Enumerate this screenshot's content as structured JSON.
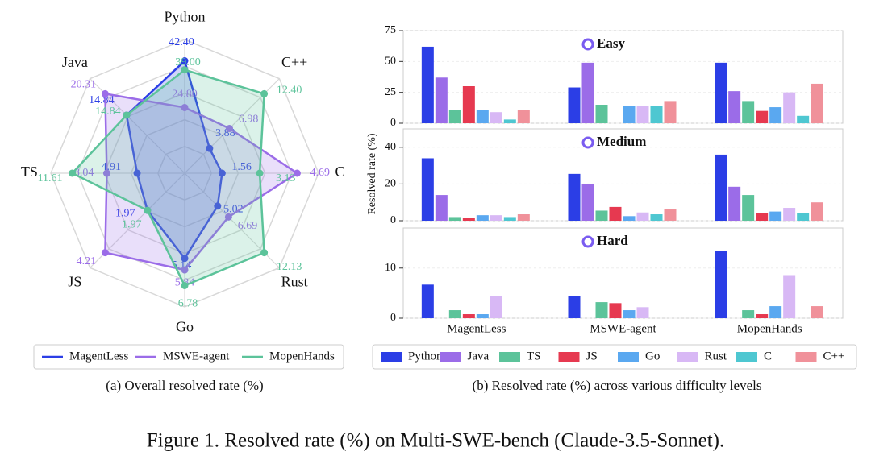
{
  "figure_caption": "Figure 1. Resolved rate (%) on Multi-SWE-bench (Claude-3.5-Sonnet).",
  "chart_data": [
    {
      "type": "radar",
      "caption": "(a) Overall resolved rate (%)",
      "axes": [
        "Python",
        "C++",
        "C",
        "Rust",
        "Go",
        "JS",
        "TS",
        "Java"
      ],
      "series": [
        {
          "name": "MagentLess",
          "color": "#2b3ee6",
          "values": [
            42.4,
            3.88,
            1.56,
            5.02,
            5.14,
            1.97,
            4.91,
            14.84
          ],
          "value_labels": [
            "42.40",
            "3.88",
            "1.56",
            "5.02",
            "5.14",
            "1.97",
            "4.91",
            "14.84"
          ]
        },
        {
          "name": "MSWE-agent",
          "color": "#9b6ce8",
          "values": [
            24.8,
            6.98,
            4.69,
            6.69,
            5.84,
            4.21,
            8.04,
            20.31
          ],
          "value_labels": [
            "24.80",
            "6.98",
            "4.69",
            "6.69",
            "5.84",
            "4.21",
            "8.04",
            "20.31"
          ]
        },
        {
          "name": "MopenHands",
          "color": "#5cc39a",
          "values": [
            39.0,
            12.4,
            3.13,
            12.13,
            6.78,
            1.97,
            11.61,
            14.84
          ],
          "value_labels": [
            "39.00",
            "12.40",
            "3.13",
            "12.13",
            "6.78",
            "1.97",
            "11.61",
            "14.84"
          ]
        }
      ]
    },
    {
      "type": "bar",
      "caption": "(b) Resolved rate (%) across various difficulty levels",
      "ylabel": "Resolved rate (%)",
      "categories": [
        "MagentLess",
        "MSWE-agent",
        "MopenHands"
      ],
      "series": [
        {
          "name": "Python",
          "color": "#2b3ee6"
        },
        {
          "name": "Java",
          "color": "#9b6ce8"
        },
        {
          "name": "TS",
          "color": "#5cc39a"
        },
        {
          "name": "JS",
          "color": "#e63950"
        },
        {
          "name": "Go",
          "color": "#5aa8f0"
        },
        {
          "name": "Rust",
          "color": "#d8b8f5"
        },
        {
          "name": "C",
          "color": "#4ec7d1"
        },
        {
          "name": "C++",
          "color": "#f0919a"
        }
      ],
      "panels": [
        {
          "title": "Easy",
          "ylim": [
            0,
            75
          ],
          "yticks": [
            0,
            25,
            50,
            75
          ],
          "values": [
            [
              62,
              29,
              49
            ],
            [
              37,
              49,
              26
            ],
            [
              11,
              15,
              18
            ],
            [
              30,
              0,
              10
            ],
            [
              11,
              14,
              13
            ],
            [
              9,
              14,
              25
            ],
            [
              3,
              14,
              6
            ],
            [
              11,
              18,
              32
            ]
          ]
        },
        {
          "title": "Medium",
          "ylim": [
            0,
            50
          ],
          "yticks": [
            0,
            20,
            40
          ],
          "values": [
            [
              34,
              25.5,
              36
            ],
            [
              14,
              20,
              18.5
            ],
            [
              2,
              5.5,
              14
            ],
            [
              1.5,
              7.5,
              4
            ],
            [
              3,
              2.5,
              5
            ],
            [
              3,
              4.5,
              7
            ],
            [
              2,
              3.5,
              4
            ],
            [
              3.5,
              6.5,
              10
            ]
          ]
        },
        {
          "title": "Hard",
          "ylim": [
            0,
            18
          ],
          "yticks": [
            0,
            10
          ],
          "values": [
            [
              6.7,
              4.5,
              13.4
            ],
            [
              0,
              0,
              0
            ],
            [
              1.6,
              3.2,
              1.6
            ],
            [
              0.8,
              3.0,
              0.8
            ],
            [
              0.8,
              1.6,
              2.4
            ],
            [
              4.4,
              2.2,
              8.6
            ],
            [
              0,
              0,
              0
            ],
            [
              0,
              0,
              2.4
            ]
          ]
        }
      ]
    }
  ]
}
